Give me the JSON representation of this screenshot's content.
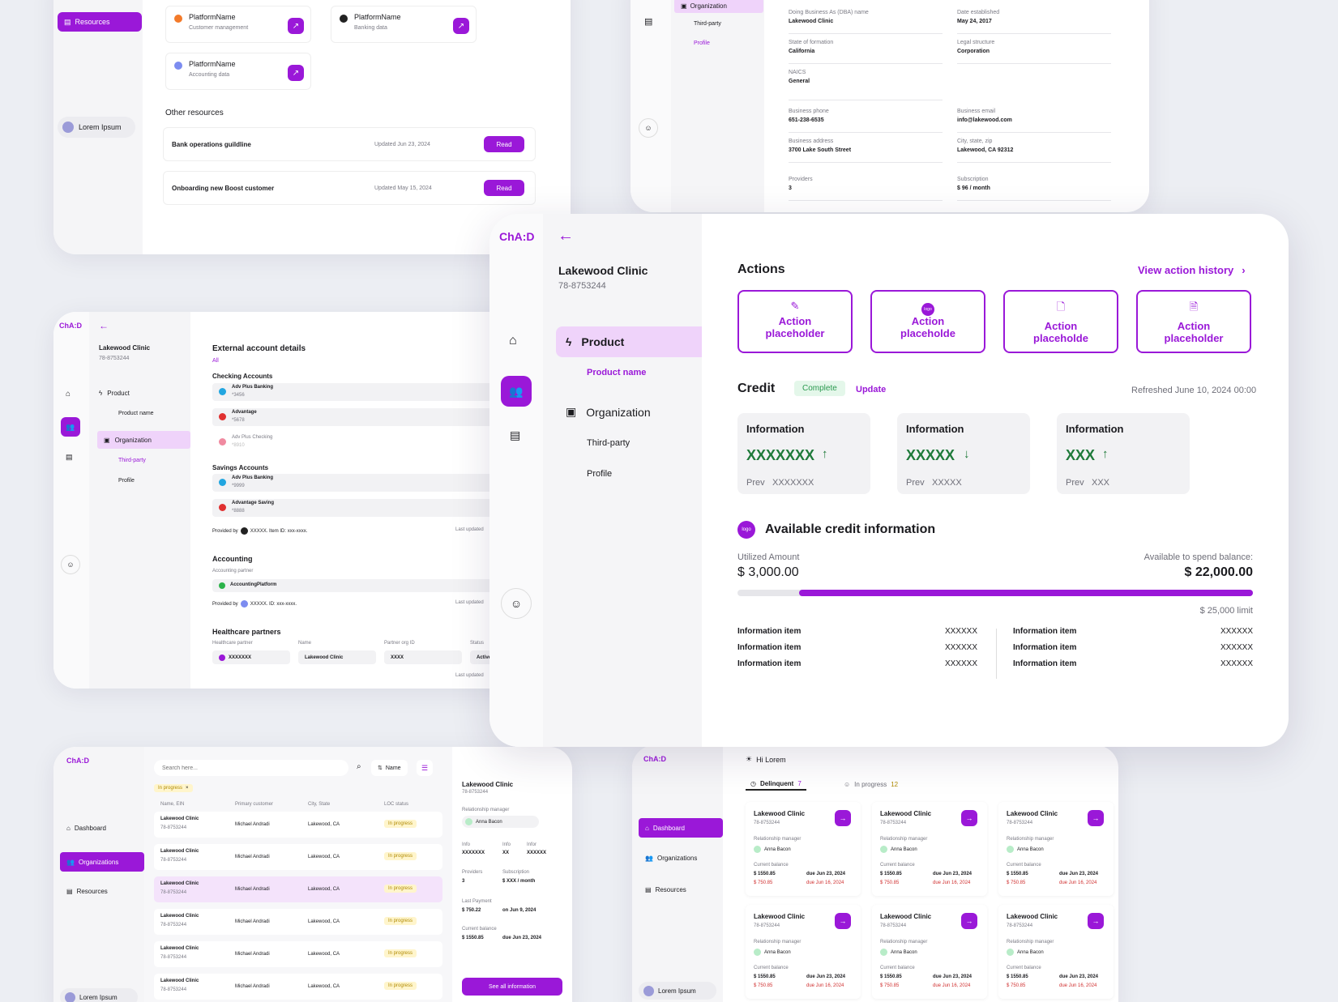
{
  "resources": {
    "nav_label": "Resources",
    "user": "Lorem Ipsum",
    "platforms": [
      {
        "name": "PlatformName",
        "desc": "Customer management",
        "dot": "#f37a2a"
      },
      {
        "name": "PlatformName",
        "desc": "Banking data",
        "dot": "#222222"
      },
      {
        "name": "PlatformName",
        "desc": "Accounting data",
        "dot": "#7c8cf0"
      }
    ],
    "other_title": "Other resources",
    "items": [
      {
        "title": "Bank operations guildline",
        "updated": "Updated Jun 23, 2024",
        "btn": "Read"
      },
      {
        "title": "Onboarding new Boost customer",
        "updated": "Updated May 15, 2024",
        "btn": "Read"
      }
    ]
  },
  "profile": {
    "nav": {
      "org": "Organization",
      "third": "Third-party",
      "profile": "Profile"
    },
    "fields": [
      {
        "label": "Doing Business As (DBA) name",
        "value": "Lakewood Clinic"
      },
      {
        "label": "Date established",
        "value": "May 24, 2017"
      },
      {
        "label": "State of formation",
        "value": "California"
      },
      {
        "label": "Legal structure",
        "value": "Corporation"
      },
      {
        "label": "NAICS",
        "value": "General"
      },
      {
        "label": "Business phone",
        "value": "651-238-6535"
      },
      {
        "label": "Business email",
        "value": "info@lakewood.com"
      },
      {
        "label": "Business address",
        "value": "3700 Lake South Street"
      },
      {
        "label": "City, state, zip",
        "value": "Lakewood, CA 92312"
      },
      {
        "label": "Providers",
        "value": "3"
      },
      {
        "label": "Subscription",
        "value": "$ 96 / month"
      }
    ]
  },
  "external": {
    "logo": "ChA:D",
    "clinic": "Lakewood Clinic",
    "ein": "78-8753244",
    "nav": {
      "product": "Product",
      "product_name": "Product name",
      "org": "Organization",
      "third": "Third-party",
      "profile": "Profile"
    },
    "title": "External account details",
    "filter": "All",
    "checking_title": "Checking Accounts",
    "checking": [
      {
        "name": "Adv Plus Banking",
        "num": "*3456",
        "color": "#22a6e0"
      },
      {
        "name": "Advantage",
        "num": "*5678",
        "color": "#e03030"
      },
      {
        "name": "Adv Plus Checking",
        "num": "*8910",
        "color": "#f08aa0"
      }
    ],
    "savings_title": "Savings Accounts",
    "savings": [
      {
        "name": "Adv Plus Banking",
        "num": "*9999",
        "color": "#22a6e0"
      },
      {
        "name": "Advantage Saving",
        "num": "*8888",
        "color": "#e03030"
      }
    ],
    "provided1": "Provided by",
    "provided1_val": "XXXXX.  Item ID: xxx-xxxx.",
    "last_updated": "Last updated",
    "accounting_title": "Accounting",
    "accounting_sub": "Accounting partner",
    "accounting_name": "AccountingPlatform",
    "provided2_val": "XXXXX.  ID: xxx-xxxx.",
    "health_title": "Healthcare partners",
    "health_headers": [
      "Healthcare partner",
      "Name",
      "Partner org ID",
      "Status"
    ],
    "health_values": [
      "XXXXXXX",
      "Lakewood Clinic",
      "XXXX",
      "Active"
    ]
  },
  "main": {
    "logo": "ChA:D",
    "clinic": "Lakewood Clinic",
    "ein": "78-8753244",
    "nav": {
      "product": "Product",
      "product_name": "Product name",
      "org": "Organization",
      "third": "Third-party",
      "profile": "Profile"
    },
    "actions_title": "Actions",
    "history": "View action history",
    "actions": [
      {
        "l1": "Action",
        "l2": "placeholder"
      },
      {
        "l1": "Action",
        "l2": "placeholde"
      },
      {
        "l1": "Action",
        "l2": "placeholde"
      },
      {
        "l1": "Action",
        "l2": "placeholder"
      }
    ],
    "credit_title": "Credit",
    "credit_status": "Complete",
    "credit_update": "Update",
    "refreshed": "Refreshed June 10, 2024 00:00",
    "info_cards": [
      {
        "title": "Information",
        "value": "XXXXXXX",
        "arrow": "↑",
        "prev_label": "Prev",
        "prev": "XXXXXXX"
      },
      {
        "title": "Information",
        "value": "XXXXX",
        "arrow": "↓",
        "prev_label": "Prev",
        "prev": "XXXXX"
      },
      {
        "title": "Information",
        "value": "XXX",
        "arrow": "↑",
        "prev_label": "Prev",
        "prev": "XXX"
      }
    ],
    "avail_title": "Available credit information",
    "logo_text": "logo",
    "utilized_label": "Utilized Amount",
    "utilized": "$ 3,000.00",
    "spend_label": "Available to spend balance:",
    "spend": "$ 22,000.00",
    "progress": 0.12,
    "limit": "$ 25,000 limit",
    "items_left": [
      {
        "k": "Information item",
        "v": "XXXXXX"
      },
      {
        "k": "Information item",
        "v": "XXXXXX"
      },
      {
        "k": "Information item",
        "v": "XXXXXX"
      }
    ],
    "items_right": [
      {
        "k": "Information item",
        "v": "XXXXXX"
      },
      {
        "k": "Information item",
        "v": "XXXXXX"
      },
      {
        "k": "Information item",
        "v": "XXXXXX"
      }
    ]
  },
  "orgs": {
    "logo": "ChA:D",
    "nav": {
      "dashboard": "Dashboard",
      "orgs": "Organizations",
      "resources": "Resources"
    },
    "user": "Lorem Ipsum",
    "search_placeholder": "Search here...",
    "sort": "Name",
    "chip": "In progress",
    "headers": [
      "Name, EIN",
      "Primary customer",
      "City, State",
      "LOC status"
    ],
    "rows": [
      {
        "name": "Lakewood Clinic",
        "ein": "78-8753244",
        "cust": "Michael Andradi",
        "city": "Lakewood, CA",
        "status": "In progress"
      },
      {
        "name": "Lakewood Clinic",
        "ein": "78-8753244",
        "cust": "Michael Andradi",
        "city": "Lakewood, CA",
        "status": "In progress"
      },
      {
        "name": "Lakewood Clinic",
        "ein": "78-8753244",
        "cust": "Michael Andradi",
        "city": "Lakewood, CA",
        "status": "In progress"
      },
      {
        "name": "Lakewood Clinic",
        "ein": "78-8753244",
        "cust": "Michael Andradi",
        "city": "Lakewood, CA",
        "status": "In progress"
      },
      {
        "name": "Lakewood Clinic",
        "ein": "78-8753244",
        "cust": "Michael Andradi",
        "city": "Lakewood, CA",
        "status": "In progress"
      },
      {
        "name": "Lakewood Clinic",
        "ein": "78-8753244",
        "cust": "Michael Andradi",
        "city": "Lakewood, CA",
        "status": "In progress"
      }
    ],
    "detail": {
      "clinic": "Lakewood Clinic",
      "ein": "78-8753244",
      "rm_label": "Relationship manager",
      "rm": "Anna Bacon",
      "info": [
        {
          "l": "Info",
          "v": "XXXXXXX"
        },
        {
          "l": "Info",
          "v": "XX"
        },
        {
          "l": "Infor",
          "v": "XXXXXX"
        }
      ],
      "providers_label": "Providers",
      "providers": "3",
      "sub_label": "Subscription",
      "sub": "$ XXX / month",
      "lp_label": "Last Payment",
      "lp": "$ 750.22",
      "lp_date": "on Jun 9, 2024",
      "cb_label": "Current balance",
      "cb": "$ 1550.85",
      "cb_due": "due Jun 23, 2024",
      "btn": "See all information"
    }
  },
  "dash": {
    "logo": "ChA:D",
    "nav": {
      "dashboard": "Dashboard",
      "orgs": "Organizations",
      "resources": "Resources"
    },
    "user": "Lorem Ipsum",
    "greeting": "Hi Lorem",
    "tabs": [
      {
        "label": "Delinquent",
        "count": "7"
      },
      {
        "label": "In progress",
        "count": "12"
      }
    ],
    "card": {
      "clinic": "Lakewood Clinic",
      "ein": "78-8753244",
      "rm_label": "Relationship manager",
      "rm": "Anna Bacon",
      "cb_label": "Current balance",
      "cb": "$ 1550.85",
      "cb_due": "due Jun 23, 2024",
      "late": "$ 750.85",
      "late_due": "due Jun 16, 2024"
    }
  }
}
